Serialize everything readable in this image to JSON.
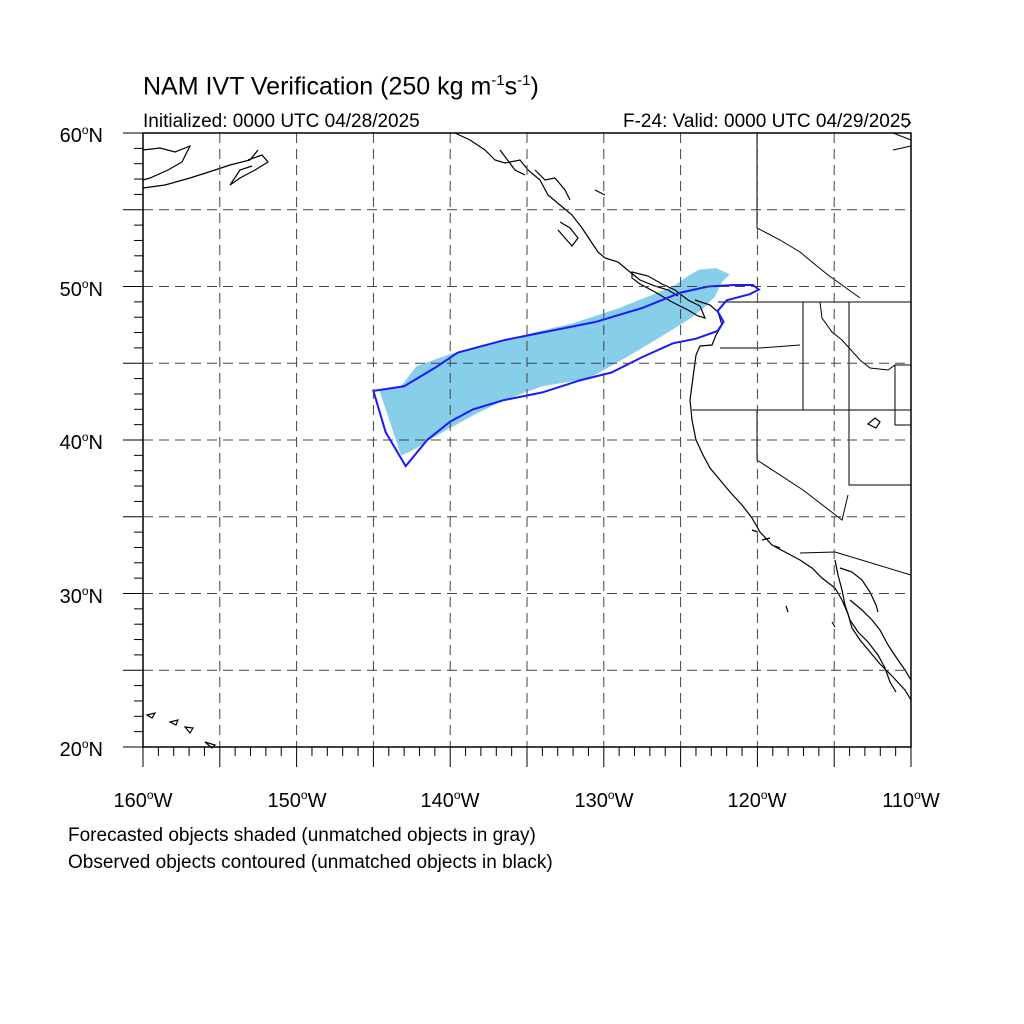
{
  "title": {
    "main": "NAM IVT Verification (250 kg m",
    "sup1": "-1",
    "mid": "s",
    "sup2": "-1",
    "end": ")"
  },
  "initialized": "Initialized: 0000 UTC 04/28/2025",
  "valid": "F-24: Valid: 0000 UTC 04/29/2025",
  "notes": {
    "line1": "Forecasted objects shaded (unmatched objects in gray)",
    "line2": "Observed objects contoured (unmatched objects in black)"
  },
  "map": {
    "lon_range": [
      -160,
      -110
    ],
    "lat_range": [
      20,
      60
    ],
    "grid_spacing_deg": 5,
    "grid_style": "dashed",
    "lat_labels": [
      {
        "value": "60",
        "hemi": "N"
      },
      {
        "value": "50",
        "hemi": "N"
      },
      {
        "value": "40",
        "hemi": "N"
      },
      {
        "value": "30",
        "hemi": "N"
      },
      {
        "value": "20",
        "hemi": "N"
      }
    ],
    "lon_labels": [
      {
        "value": "160",
        "hemi": "W"
      },
      {
        "value": "150",
        "hemi": "W"
      },
      {
        "value": "140",
        "hemi": "W"
      },
      {
        "value": "130",
        "hemi": "W"
      },
      {
        "value": "120",
        "hemi": "W"
      },
      {
        "value": "110",
        "hemi": "W"
      }
    ],
    "forecast_object": {
      "fill_color": "#87ceeb",
      "polygon_lonlat": [
        [
          -144.6,
          43.2
        ],
        [
          -143.2,
          43.5
        ],
        [
          -142.2,
          44.8
        ],
        [
          -140.0,
          45.6
        ],
        [
          -137.5,
          46.2
        ],
        [
          -135.0,
          46.9
        ],
        [
          -132.0,
          47.6
        ],
        [
          -129.0,
          48.6
        ],
        [
          -127.0,
          49.4
        ],
        [
          -125.5,
          50.0
        ],
        [
          -124.5,
          50.7
        ],
        [
          -123.8,
          51.1
        ],
        [
          -122.7,
          51.2
        ],
        [
          -121.8,
          50.8
        ],
        [
          -122.3,
          50.3
        ],
        [
          -122.8,
          49.3
        ],
        [
          -123.5,
          48.6
        ],
        [
          -124.4,
          47.9
        ],
        [
          -126.0,
          46.9
        ],
        [
          -128.5,
          45.4
        ],
        [
          -131.0,
          44.0
        ],
        [
          -134.0,
          43.5
        ],
        [
          -136.5,
          42.6
        ],
        [
          -138.5,
          41.6
        ],
        [
          -140.5,
          40.5
        ],
        [
          -142.5,
          39.3
        ],
        [
          -143.2,
          39.0
        ]
      ]
    },
    "observed_object": {
      "line_color": "#1a1aff",
      "polygon_lonlat": [
        [
          -145.0,
          43.2
        ],
        [
          -143.0,
          43.5
        ],
        [
          -141.0,
          44.7
        ],
        [
          -139.5,
          45.7
        ],
        [
          -136.5,
          46.5
        ],
        [
          -133.5,
          47.1
        ],
        [
          -130.5,
          47.7
        ],
        [
          -127.5,
          48.6
        ],
        [
          -125.0,
          49.6
        ],
        [
          -123.2,
          50.0
        ],
        [
          -121.5,
          50.1
        ],
        [
          -120.3,
          50.1
        ],
        [
          -119.9,
          49.8
        ],
        [
          -120.5,
          49.5
        ],
        [
          -122.0,
          49.1
        ],
        [
          -122.6,
          48.4
        ],
        [
          -122.2,
          47.7
        ],
        [
          -122.6,
          47.1
        ],
        [
          -124.0,
          46.6
        ],
        [
          -125.5,
          46.3
        ],
        [
          -127.5,
          45.4
        ],
        [
          -129.5,
          44.4
        ],
        [
          -131.5,
          43.9
        ],
        [
          -134.0,
          43.1
        ],
        [
          -136.5,
          42.6
        ],
        [
          -138.5,
          42.0
        ],
        [
          -140.0,
          41.2
        ],
        [
          -141.5,
          40.0
        ],
        [
          -142.9,
          38.3
        ],
        [
          -144.2,
          40.5
        ]
      ]
    }
  }
}
